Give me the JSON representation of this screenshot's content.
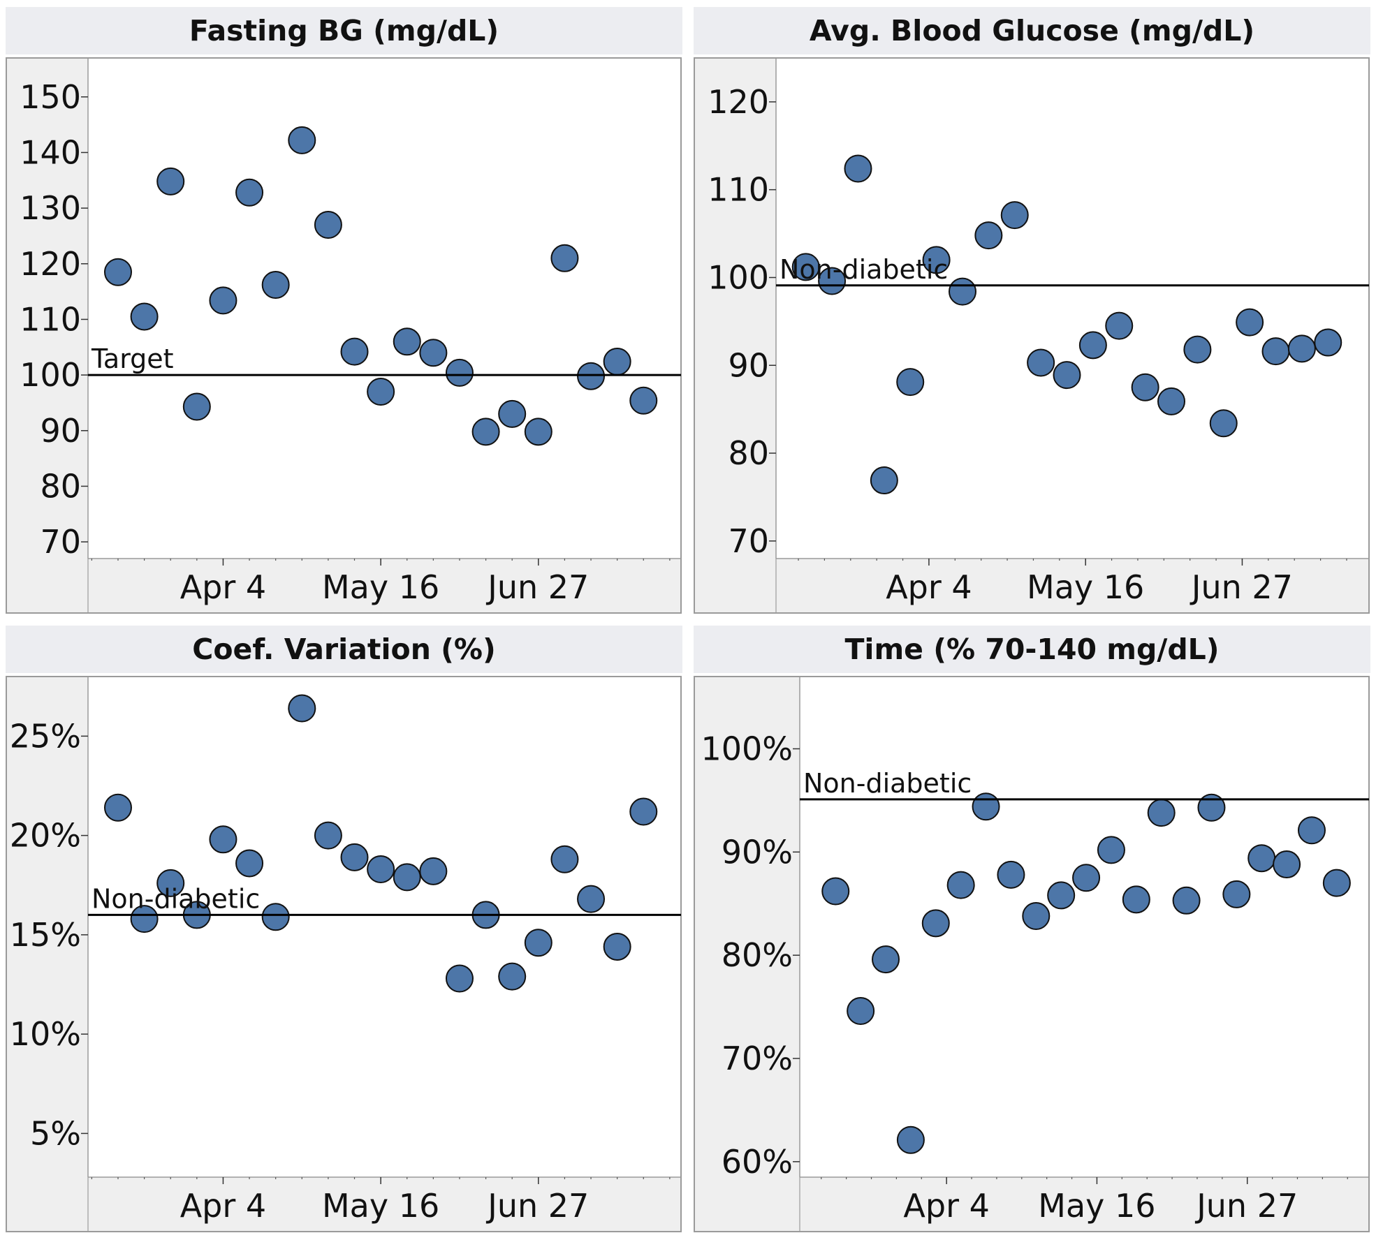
{
  "chart_data": [
    {
      "type": "scatter",
      "title": "Fasting BG (mg/dL)",
      "ylim": [
        67,
        157
      ],
      "yticks": [
        70,
        80,
        90,
        100,
        110,
        120,
        130,
        140,
        150
      ],
      "ytick_labels": [
        "70",
        "80",
        "90",
        "100",
        "110",
        "120",
        "130",
        "140",
        "150"
      ],
      "xticks": [
        {
          "date": "2022-04-04",
          "label": "Apr 4"
        },
        {
          "date": "2022-05-16",
          "label": "May 16"
        },
        {
          "date": "2022-06-27",
          "label": "Jun 27"
        }
      ],
      "xlim": [
        "2022-02-27",
        "2022-08-04"
      ],
      "reference": {
        "value": 100,
        "label": "Target"
      },
      "points": [
        {
          "x": "2022-03-07",
          "y": 118.5
        },
        {
          "x": "2022-03-14",
          "y": 110.5
        },
        {
          "x": "2022-03-21",
          "y": 134.8
        },
        {
          "x": "2022-03-28",
          "y": 94.3
        },
        {
          "x": "2022-04-04",
          "y": 113.4
        },
        {
          "x": "2022-04-11",
          "y": 132.8
        },
        {
          "x": "2022-04-18",
          "y": 116.2
        },
        {
          "x": "2022-04-25",
          "y": 142.2
        },
        {
          "x": "2022-05-02",
          "y": 127.0
        },
        {
          "x": "2022-05-09",
          "y": 104.2
        },
        {
          "x": "2022-05-16",
          "y": 97.0
        },
        {
          "x": "2022-05-23",
          "y": 106.0
        },
        {
          "x": "2022-05-30",
          "y": 104.0
        },
        {
          "x": "2022-06-06",
          "y": 100.4
        },
        {
          "x": "2022-06-13",
          "y": 89.8
        },
        {
          "x": "2022-06-20",
          "y": 93.0
        },
        {
          "x": "2022-06-27",
          "y": 89.8
        },
        {
          "x": "2022-07-04",
          "y": 121.0
        },
        {
          "x": "2022-07-11",
          "y": 99.8
        },
        {
          "x": "2022-07-18",
          "y": 102.4
        },
        {
          "x": "2022-07-25",
          "y": 95.4
        }
      ]
    },
    {
      "type": "scatter",
      "title": "Avg. Blood Glucose (mg/dL)",
      "ylim": [
        68,
        125
      ],
      "yticks": [
        70,
        80,
        90,
        100,
        110,
        120
      ],
      "ytick_labels": [
        "70",
        "80",
        "90",
        "100",
        "110",
        "120"
      ],
      "xticks": [
        {
          "date": "2022-04-04",
          "label": "Apr 4"
        },
        {
          "date": "2022-05-16",
          "label": "May 16"
        },
        {
          "date": "2022-06-27",
          "label": "Jun 27"
        }
      ],
      "xlim": [
        "2022-02-22",
        "2022-07-31"
      ],
      "reference": {
        "value": 99.1,
        "label": "Non-diabetic"
      },
      "points": [
        {
          "x": "2022-03-02",
          "y": 101.2
        },
        {
          "x": "2022-03-09",
          "y": 99.6
        },
        {
          "x": "2022-03-16",
          "y": 112.4
        },
        {
          "x": "2022-03-23",
          "y": 76.9
        },
        {
          "x": "2022-03-30",
          "y": 88.1
        },
        {
          "x": "2022-04-06",
          "y": 102.0
        },
        {
          "x": "2022-04-13",
          "y": 98.4
        },
        {
          "x": "2022-04-20",
          "y": 104.8
        },
        {
          "x": "2022-04-27",
          "y": 107.1
        },
        {
          "x": "2022-05-04",
          "y": 90.3
        },
        {
          "x": "2022-05-11",
          "y": 88.9
        },
        {
          "x": "2022-05-18",
          "y": 92.3
        },
        {
          "x": "2022-05-25",
          "y": 94.5
        },
        {
          "x": "2022-06-01",
          "y": 87.5
        },
        {
          "x": "2022-06-08",
          "y": 85.9
        },
        {
          "x": "2022-06-15",
          "y": 91.8
        },
        {
          "x": "2022-06-22",
          "y": 83.4
        },
        {
          "x": "2022-06-29",
          "y": 94.9
        },
        {
          "x": "2022-07-06",
          "y": 91.6
        },
        {
          "x": "2022-07-13",
          "y": 91.9
        },
        {
          "x": "2022-07-20",
          "y": 92.6
        }
      ]
    },
    {
      "type": "scatter",
      "title": "Coef. Variation (%)",
      "ylim": [
        2.8,
        28.0
      ],
      "yticks": [
        5,
        10,
        15,
        20,
        25
      ],
      "ytick_labels": [
        "5%",
        "10%",
        "15%",
        "20%",
        "25%"
      ],
      "xticks": [
        {
          "date": "2022-04-04",
          "label": "Apr 4"
        },
        {
          "date": "2022-05-16",
          "label": "May 16"
        },
        {
          "date": "2022-06-27",
          "label": "Jun 27"
        }
      ],
      "xlim": [
        "2022-02-27",
        "2022-08-04"
      ],
      "reference": {
        "value": 16.0,
        "label": "Non-diabetic"
      },
      "points": [
        {
          "x": "2022-03-07",
          "y": 21.4
        },
        {
          "x": "2022-03-14",
          "y": 15.8
        },
        {
          "x": "2022-03-21",
          "y": 17.6
        },
        {
          "x": "2022-03-28",
          "y": 16.0
        },
        {
          "x": "2022-04-04",
          "y": 19.8
        },
        {
          "x": "2022-04-11",
          "y": 18.6
        },
        {
          "x": "2022-04-18",
          "y": 15.9
        },
        {
          "x": "2022-04-25",
          "y": 26.4
        },
        {
          "x": "2022-05-02",
          "y": 20.0
        },
        {
          "x": "2022-05-09",
          "y": 18.9
        },
        {
          "x": "2022-05-16",
          "y": 18.3
        },
        {
          "x": "2022-05-23",
          "y": 17.9
        },
        {
          "x": "2022-05-30",
          "y": 18.2
        },
        {
          "x": "2022-06-06",
          "y": 12.8
        },
        {
          "x": "2022-06-13",
          "y": 16.0
        },
        {
          "x": "2022-06-20",
          "y": 12.9
        },
        {
          "x": "2022-06-27",
          "y": 14.6
        },
        {
          "x": "2022-07-04",
          "y": 18.8
        },
        {
          "x": "2022-07-11",
          "y": 16.8
        },
        {
          "x": "2022-07-18",
          "y": 14.4
        },
        {
          "x": "2022-07-25",
          "y": 21.2
        }
      ]
    },
    {
      "type": "scatter",
      "title": "Time (% 70-140 mg/dL)",
      "ylim": [
        58.5,
        107.0
      ],
      "yticks": [
        60,
        70,
        80,
        90,
        100
      ],
      "ytick_labels": [
        "60%",
        "70%",
        "80%",
        "90%",
        "100%"
      ],
      "xticks": [
        {
          "date": "2022-04-04",
          "label": "Apr 4"
        },
        {
          "date": "2022-05-16",
          "label": "May 16"
        },
        {
          "date": "2022-06-27",
          "label": "Jun 27"
        }
      ],
      "xlim": [
        "2022-02-22",
        "2022-07-31"
      ],
      "reference": {
        "value": 95.1,
        "label": "Non-diabetic"
      },
      "points": [
        {
          "x": "2022-03-04",
          "y": 86.2
        },
        {
          "x": "2022-03-11",
          "y": 74.6
        },
        {
          "x": "2022-03-18",
          "y": 79.6
        },
        {
          "x": "2022-03-25",
          "y": 62.1
        },
        {
          "x": "2022-04-01",
          "y": 83.1
        },
        {
          "x": "2022-04-08",
          "y": 86.8
        },
        {
          "x": "2022-04-15",
          "y": 94.4
        },
        {
          "x": "2022-04-22",
          "y": 87.8
        },
        {
          "x": "2022-04-29",
          "y": 83.8
        },
        {
          "x": "2022-05-06",
          "y": 85.8
        },
        {
          "x": "2022-05-13",
          "y": 87.5
        },
        {
          "x": "2022-05-20",
          "y": 90.2
        },
        {
          "x": "2022-05-27",
          "y": 85.4
        },
        {
          "x": "2022-06-03",
          "y": 93.8
        },
        {
          "x": "2022-06-10",
          "y": 85.3
        },
        {
          "x": "2022-06-17",
          "y": 94.3
        },
        {
          "x": "2022-06-24",
          "y": 85.9
        },
        {
          "x": "2022-07-01",
          "y": 89.4
        },
        {
          "x": "2022-07-08",
          "y": 88.8
        },
        {
          "x": "2022-07-15",
          "y": 92.1
        },
        {
          "x": "2022-07-22",
          "y": 87.0
        }
      ]
    }
  ],
  "colors": {
    "point_fill": "#4d76a8",
    "point_fill_faded": "#9bb1cc",
    "point_stroke": "#111111",
    "panel_header": "#ecedf1",
    "axis_band": "#efefef",
    "reference_line": "#000000"
  }
}
